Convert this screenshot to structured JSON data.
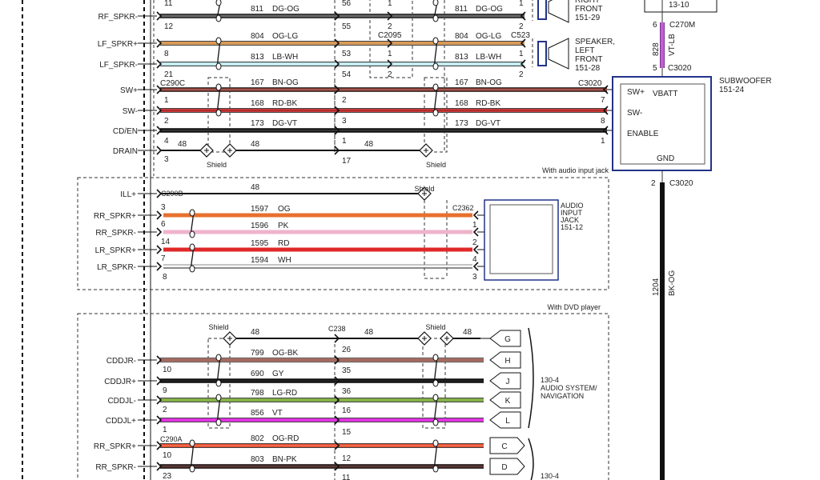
{
  "top": {
    "wires": [
      {
        "signal": "RF_SPKR-",
        "circuit": "811",
        "color_code": "DG-OG",
        "color": "#3b3b3b",
        "stripe": "#9a9a9a",
        "pins": [
          "12",
          "55",
          "2",
          "2"
        ],
        "pin_above": [
          "11",
          "56",
          "1",
          "1"
        ]
      },
      {
        "signal": "LF_SPKR+",
        "circuit": "804",
        "color_code": "OG-LG",
        "color": "#d79a58",
        "stripe": "#d79a58",
        "pins": [
          "8",
          "53",
          "1",
          "1"
        ]
      },
      {
        "signal": "LF_SPKR-",
        "circuit": "813",
        "color_code": "LB-WH",
        "color": "#a9dce6",
        "stripe": "#ffffff",
        "pins": [
          "21",
          "54",
          "2",
          "2"
        ]
      },
      {
        "signal": "SW+",
        "circuit": "167",
        "color_code": "BN-OG",
        "color": "#6e2e26",
        "stripe": "#d0807a",
        "pins": [
          "1",
          "2",
          "7"
        ]
      },
      {
        "signal": "SW-",
        "circuit": "168",
        "color_code": "RD-BK",
        "color": "#d43c3c",
        "stripe": "#8a2020",
        "pins": [
          "2",
          "3",
          "8"
        ]
      },
      {
        "signal": "CD/EN",
        "circuit": "173",
        "color_code": "DG-VT",
        "color": "#111111",
        "stripe": "#555555",
        "pins": [
          "4",
          "1",
          "1"
        ]
      },
      {
        "signal": "DRAIN",
        "circuit": "48",
        "pins": [
          "3",
          "17"
        ]
      }
    ],
    "connectors": {
      "left": "C290C",
      "c2095": "C2095",
      "c523": "C523",
      "sub": "C3020"
    },
    "shield_label": "Shield",
    "speaker_right": {
      "lines": [
        "RIGHT",
        "FRONT",
        "151-29"
      ]
    },
    "speaker_left": {
      "lines": [
        "SPEAKER,",
        "LEFT",
        "FRONT",
        "151-28"
      ]
    },
    "top_box_label": "13-10"
  },
  "subwoofer": {
    "title": "SUBWOOFER",
    "ref": "151-24",
    "terminals": [
      "SW+",
      "VBATT",
      "SW-",
      "ENABLE",
      "GND"
    ],
    "vbatt_wire": {
      "pin_top": "6",
      "conn_top": "C270M",
      "circuit": "828",
      "color_code": "VT-LB",
      "color": "#c060d0",
      "pin_bottom": "5",
      "conn_bottom": "C3020"
    },
    "gnd_wire": {
      "pin": "2",
      "conn": "C3020",
      "circuit": "1204",
      "color_code": "BK-OG",
      "color": "#111111"
    }
  },
  "audio_jack": {
    "section_label": "With audio input jack",
    "connector_left": "C290B",
    "connector_right": "C2362",
    "shield_label": "Shield",
    "title_lines": [
      "AUDIO",
      "INPUT",
      "JACK",
      "151-12"
    ],
    "wires": [
      {
        "signal": "ILL+",
        "circuit": "48",
        "color_code": "",
        "color": "#111111",
        "pins": []
      },
      {
        "signal": "RR_SPKR+",
        "circuit": "1597",
        "color_code": "OG",
        "color": "#e8702e",
        "pins": [
          "3",
          ""
        ],
        "jack": "RR_SPKR+"
      },
      {
        "signal": "RR_SPKR-",
        "circuit": "1596",
        "color_code": "PK",
        "color": "#efb3cb",
        "pins": [
          "6",
          "1"
        ],
        "jack": "RR_SPKR-"
      },
      {
        "signal": "LR_SPKR+",
        "circuit": "1595",
        "color_code": "RD",
        "color": "#e02828",
        "pins": [
          "14",
          "2"
        ],
        "jack": "LR_SPKR+"
      },
      {
        "signal": "LR_SPKR-",
        "circuit": "1594",
        "color_code": "WH",
        "color": "#ffffff",
        "pins": [
          "7",
          "4"
        ],
        "jack": "LR_SPKR-"
      }
    ],
    "extra_pins": {
      "left_bottom": "8",
      "right_bottom": "3"
    }
  },
  "dvd": {
    "section_label": "With DVD player",
    "shield_label": "Shield",
    "connector_mid": "C238",
    "drain_circuit": "48",
    "wires": [
      {
        "signal": "CDDJR-",
        "circuit": "799",
        "color_code": "OG-BK",
        "color": "#c9867a",
        "stripe": "#6a3a30",
        "pins": [
          "10",
          "26"
        ],
        "tag": "H"
      },
      {
        "signal": "CDDJR+",
        "circuit": "690",
        "color_code": "GY",
        "color": "#111111",
        "stripe": "#333333",
        "pins": [
          "9",
          "35"
        ],
        "tag": "J"
      },
      {
        "signal": "CDDJL-",
        "circuit": "798",
        "color_code": "LG-RD",
        "color": "#86b24a",
        "stripe": "#86b24a",
        "pins": [
          "2",
          "36"
        ],
        "tag": "K"
      },
      {
        "signal": "CDDJL+",
        "circuit": "856",
        "color_code": "VT",
        "color": "#e034e0",
        "stripe": "#e034e0",
        "pins": [
          "1",
          "16"
        ],
        "tag": "L"
      },
      {
        "signal": "RR_SPKR+",
        "circuit": "802",
        "color_code": "OG-RD",
        "color": "#e84a30",
        "stripe": "#f08a60",
        "pins": [
          "10",
          "15"
        ],
        "tag": "C"
      },
      {
        "signal": "RR_SPKR-",
        "circuit": "803",
        "color_code": "BN-PK",
        "color": "#3a1f1f",
        "stripe": "#7a5050",
        "pins": [
          "23",
          "12"
        ],
        "tag": "D"
      }
    ],
    "drain_tag": "G",
    "connector_left2": "C290A",
    "extra_pins": [
      "11"
    ],
    "module1_lines": [
      "130-4",
      "AUDIO SYSTEM/",
      "NAVIGATION"
    ],
    "module2_lines": [
      "130-4"
    ]
  }
}
